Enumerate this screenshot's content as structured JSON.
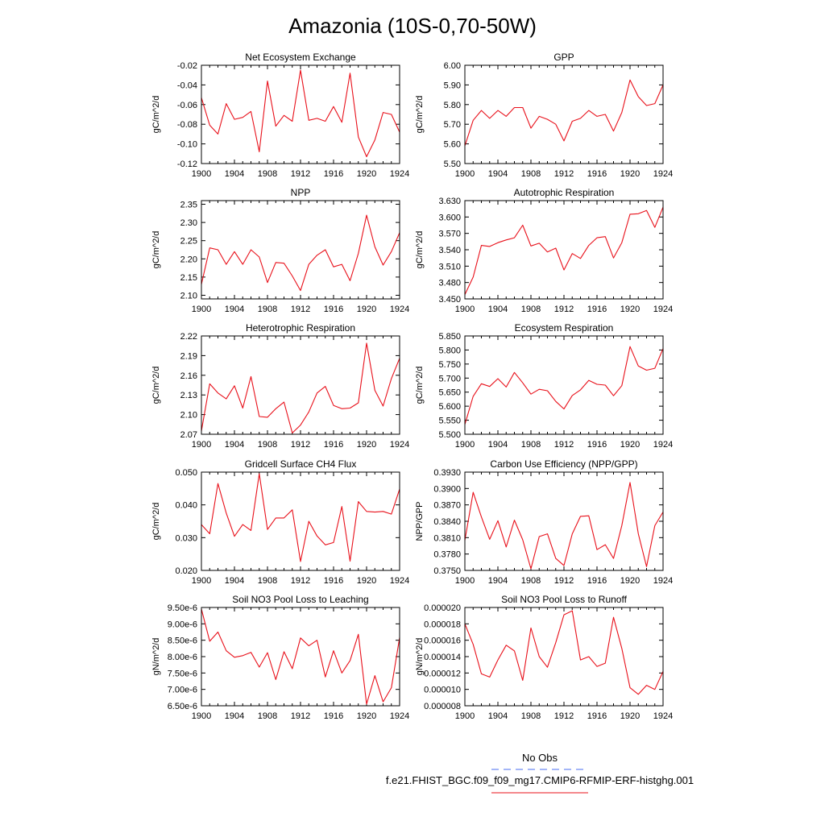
{
  "title": "Amazonia (10S-0,70-50W)",
  "legend": {
    "entries": [
      {
        "label": "No Obs",
        "color": "#4a6cf0",
        "style": "dashed"
      },
      {
        "label": "f.e21.FHIST_BGC.f09_f09_mg17.CMIP6-RFMIP-ERF-histghg.001",
        "color": "#e8101a",
        "style": "solid"
      }
    ]
  },
  "chart_data": [
    {
      "type": "line",
      "title": "Net Ecosystem Exchange",
      "ylabel": "gC/m^2/d",
      "xlabel": "",
      "xlim": [
        1900,
        1924
      ],
      "ylim": [
        -0.12,
        -0.02
      ],
      "xticks": [
        1900,
        1904,
        1908,
        1912,
        1916,
        1920,
        1924
      ],
      "yticks": [
        -0.12,
        -0.1,
        -0.08,
        -0.06,
        -0.04,
        -0.02
      ],
      "ytick_labels": [
        "-0.12",
        "-0.10",
        "-0.08",
        "-0.06",
        "-0.04",
        "-0.02"
      ],
      "x": [
        1900,
        1901,
        1902,
        1903,
        1904,
        1905,
        1906,
        1907,
        1908,
        1909,
        1910,
        1911,
        1912,
        1913,
        1914,
        1915,
        1916,
        1917,
        1918,
        1919,
        1920,
        1921,
        1922,
        1923,
        1924
      ],
      "series": [
        {
          "name": "f.e21.FHIST_BGC.f09_f09_mg17.CMIP6-RFMIP-ERF-histghg.001",
          "color": "#e8101a",
          "values": [
            -0.053,
            -0.081,
            -0.09,
            -0.059,
            -0.075,
            -0.073,
            -0.067,
            -0.108,
            -0.036,
            -0.082,
            -0.071,
            -0.077,
            -0.025,
            -0.076,
            -0.074,
            -0.077,
            -0.062,
            -0.078,
            -0.028,
            -0.093,
            -0.113,
            -0.096,
            -0.068,
            -0.07,
            -0.088
          ]
        }
      ]
    },
    {
      "type": "line",
      "title": "GPP",
      "ylabel": "gC/m^2/d",
      "xlabel": "",
      "xlim": [
        1900,
        1924
      ],
      "ylim": [
        5.5,
        6.0
      ],
      "xticks": [
        1900,
        1904,
        1908,
        1912,
        1916,
        1920,
        1924
      ],
      "yticks": [
        5.5,
        5.6,
        5.7,
        5.8,
        5.9,
        6.0
      ],
      "ytick_labels": [
        "5.50",
        "5.60",
        "5.70",
        "5.80",
        "5.90",
        "6.00"
      ],
      "x": [
        1900,
        1901,
        1902,
        1903,
        1904,
        1905,
        1906,
        1907,
        1908,
        1909,
        1910,
        1911,
        1912,
        1913,
        1914,
        1915,
        1916,
        1917,
        1918,
        1919,
        1920,
        1921,
        1922,
        1923,
        1924
      ],
      "series": [
        {
          "name": "f.e21.FHIST_BGC.f09_f09_mg17.CMIP6-RFMIP-ERF-histghg.001",
          "color": "#e8101a",
          "values": [
            5.59,
            5.72,
            5.77,
            5.73,
            5.77,
            5.74,
            5.785,
            5.785,
            5.68,
            5.74,
            5.725,
            5.7,
            5.615,
            5.715,
            5.73,
            5.77,
            5.74,
            5.75,
            5.665,
            5.76,
            5.925,
            5.84,
            5.795,
            5.805,
            5.9
          ]
        }
      ]
    },
    {
      "type": "line",
      "title": "NPP",
      "ylabel": "gC/m^2/d",
      "xlabel": "",
      "xlim": [
        1900,
        1924
      ],
      "ylim": [
        2.09,
        2.36
      ],
      "xticks": [
        1900,
        1904,
        1908,
        1912,
        1916,
        1920,
        1924
      ],
      "yticks": [
        2.1,
        2.15,
        2.2,
        2.25,
        2.3,
        2.35
      ],
      "ytick_labels": [
        "2.10",
        "2.15",
        "2.20",
        "2.25",
        "2.30",
        "2.35"
      ],
      "x": [
        1900,
        1901,
        1902,
        1903,
        1904,
        1905,
        1906,
        1907,
        1908,
        1909,
        1910,
        1911,
        1912,
        1913,
        1914,
        1915,
        1916,
        1917,
        1918,
        1919,
        1920,
        1921,
        1922,
        1923,
        1924
      ],
      "series": [
        {
          "name": "f.e21.FHIST_BGC.f09_f09_mg17.CMIP6-RFMIP-ERF-histghg.001",
          "color": "#e8101a",
          "values": [
            2.13,
            2.23,
            2.225,
            2.185,
            2.22,
            2.185,
            2.225,
            2.205,
            2.135,
            2.19,
            2.188,
            2.153,
            2.113,
            2.185,
            2.21,
            2.225,
            2.178,
            2.185,
            2.14,
            2.215,
            2.32,
            2.233,
            2.183,
            2.22,
            2.272
          ]
        }
      ]
    },
    {
      "type": "line",
      "title": "Autotrophic Respiration",
      "ylabel": "gC/m^2/d",
      "xlabel": "",
      "xlim": [
        1900,
        1924
      ],
      "ylim": [
        3.45,
        3.63
      ],
      "xticks": [
        1900,
        1904,
        1908,
        1912,
        1916,
        1920,
        1924
      ],
      "yticks": [
        3.45,
        3.48,
        3.51,
        3.54,
        3.57,
        3.6,
        3.63
      ],
      "ytick_labels": [
        "3.450",
        "3.480",
        "3.510",
        "3.540",
        "3.570",
        "3.600",
        "3.630"
      ],
      "x": [
        1900,
        1901,
        1902,
        1903,
        1904,
        1905,
        1906,
        1907,
        1908,
        1909,
        1910,
        1911,
        1912,
        1913,
        1914,
        1915,
        1916,
        1917,
        1918,
        1919,
        1920,
        1921,
        1922,
        1923,
        1924
      ],
      "series": [
        {
          "name": "f.e21.FHIST_BGC.f09_f09_mg17.CMIP6-RFMIP-ERF-histghg.001",
          "color": "#e8101a",
          "values": [
            3.458,
            3.49,
            3.548,
            3.546,
            3.553,
            3.558,
            3.562,
            3.585,
            3.547,
            3.552,
            3.536,
            3.543,
            3.503,
            3.533,
            3.524,
            3.548,
            3.562,
            3.564,
            3.525,
            3.553,
            3.605,
            3.606,
            3.612,
            3.581,
            3.618
          ]
        }
      ]
    },
    {
      "type": "line",
      "title": "Heterotrophic Respiration",
      "ylabel": "gC/m^2/d",
      "xlabel": "",
      "xlim": [
        1900,
        1924
      ],
      "ylim": [
        2.07,
        2.22
      ],
      "xticks": [
        1900,
        1904,
        1908,
        1912,
        1916,
        1920,
        1924
      ],
      "yticks": [
        2.07,
        2.1,
        2.13,
        2.16,
        2.19,
        2.22
      ],
      "ytick_labels": [
        "2.07",
        "2.10",
        "2.13",
        "2.16",
        "2.19",
        "2.22"
      ],
      "x": [
        1900,
        1901,
        1902,
        1903,
        1904,
        1905,
        1906,
        1907,
        1908,
        1909,
        1910,
        1911,
        1912,
        1913,
        1914,
        1915,
        1916,
        1917,
        1918,
        1919,
        1920,
        1921,
        1922,
        1923,
        1924
      ],
      "series": [
        {
          "name": "f.e21.FHIST_BGC.f09_f09_mg17.CMIP6-RFMIP-ERF-histghg.001",
          "color": "#e8101a",
          "values": [
            2.075,
            2.147,
            2.133,
            2.124,
            2.144,
            2.11,
            2.158,
            2.097,
            2.096,
            2.109,
            2.119,
            2.072,
            2.084,
            2.104,
            2.133,
            2.143,
            2.114,
            2.109,
            2.11,
            2.118,
            2.209,
            2.137,
            2.113,
            2.155,
            2.186
          ]
        }
      ]
    },
    {
      "type": "line",
      "title": "Ecosystem Respiration",
      "ylabel": "gC/m^2/d",
      "xlabel": "",
      "xlim": [
        1900,
        1924
      ],
      "ylim": [
        5.5,
        5.85
      ],
      "xticks": [
        1900,
        1904,
        1908,
        1912,
        1916,
        1920,
        1924
      ],
      "yticks": [
        5.5,
        5.55,
        5.6,
        5.65,
        5.7,
        5.75,
        5.8,
        5.85
      ],
      "ytick_labels": [
        "5.500",
        "5.550",
        "5.600",
        "5.650",
        "5.700",
        "5.750",
        "5.800",
        "5.850"
      ],
      "x": [
        1900,
        1901,
        1902,
        1903,
        1904,
        1905,
        1906,
        1907,
        1908,
        1909,
        1910,
        1911,
        1912,
        1913,
        1914,
        1915,
        1916,
        1917,
        1918,
        1919,
        1920,
        1921,
        1922,
        1923,
        1924
      ],
      "series": [
        {
          "name": "f.e21.FHIST_BGC.f09_f09_mg17.CMIP6-RFMIP-ERF-histghg.001",
          "color": "#e8101a",
          "values": [
            5.535,
            5.635,
            5.68,
            5.67,
            5.698,
            5.668,
            5.72,
            5.683,
            5.643,
            5.66,
            5.655,
            5.617,
            5.59,
            5.638,
            5.658,
            5.692,
            5.678,
            5.675,
            5.637,
            5.673,
            5.812,
            5.743,
            5.728,
            5.735,
            5.805
          ]
        }
      ]
    },
    {
      "type": "line",
      "title": "Gridcell Surface CH4 Flux",
      "ylabel": "gC/m^2/d",
      "xlabel": "",
      "xlim": [
        1900,
        1924
      ],
      "ylim": [
        0.02,
        0.05
      ],
      "xticks": [
        1900,
        1904,
        1908,
        1912,
        1916,
        1920,
        1924
      ],
      "yticks": [
        0.02,
        0.03,
        0.04,
        0.05
      ],
      "ytick_labels": [
        "0.020",
        "0.030",
        "0.040",
        "0.050"
      ],
      "x": [
        1900,
        1901,
        1902,
        1903,
        1904,
        1905,
        1906,
        1907,
        1908,
        1909,
        1910,
        1911,
        1912,
        1913,
        1914,
        1915,
        1916,
        1917,
        1918,
        1919,
        1920,
        1921,
        1922,
        1923,
        1924
      ],
      "series": [
        {
          "name": "f.e21.FHIST_BGC.f09_f09_mg17.CMIP6-RFMIP-ERF-histghg.001",
          "color": "#e8101a",
          "values": [
            0.034,
            0.0312,
            0.0465,
            0.0375,
            0.0304,
            0.034,
            0.0322,
            0.0495,
            0.0325,
            0.036,
            0.036,
            0.0385,
            0.0227,
            0.035,
            0.0305,
            0.0278,
            0.0285,
            0.0395,
            0.0228,
            0.041,
            0.038,
            0.0378,
            0.038,
            0.0372,
            0.0448
          ]
        }
      ]
    },
    {
      "type": "line",
      "title": "Carbon Use Efficiency (NPP/GPP)",
      "ylabel": "NPP/GPP",
      "xlabel": "",
      "xlim": [
        1900,
        1924
      ],
      "ylim": [
        0.375,
        0.393
      ],
      "xticks": [
        1900,
        1904,
        1908,
        1912,
        1916,
        1920,
        1924
      ],
      "yticks": [
        0.375,
        0.378,
        0.381,
        0.384,
        0.387,
        0.39,
        0.393
      ],
      "ytick_labels": [
        "0.3750",
        "0.3780",
        "0.3810",
        "0.3840",
        "0.3870",
        "0.3900",
        "0.3930"
      ],
      "x": [
        1900,
        1901,
        1902,
        1903,
        1904,
        1905,
        1906,
        1907,
        1908,
        1909,
        1910,
        1911,
        1912,
        1913,
        1914,
        1915,
        1916,
        1917,
        1918,
        1919,
        1920,
        1921,
        1922,
        1923,
        1924
      ],
      "series": [
        {
          "name": "f.e21.FHIST_BGC.f09_f09_mg17.CMIP6-RFMIP-ERF-histghg.001",
          "color": "#e8101a",
          "values": [
            0.3805,
            0.3893,
            0.3848,
            0.3807,
            0.3841,
            0.3793,
            0.3842,
            0.3806,
            0.3753,
            0.3812,
            0.3817,
            0.3772,
            0.3759,
            0.3817,
            0.3849,
            0.385,
            0.3788,
            0.3797,
            0.3772,
            0.3832,
            0.3911,
            0.3817,
            0.3757,
            0.3832,
            0.3857
          ]
        }
      ]
    },
    {
      "type": "line",
      "title": "Soil NO3 Pool Loss to Leaching",
      "ylabel": "gN/m^2/d",
      "xlabel": "",
      "xlim": [
        1900,
        1924
      ],
      "ylim": [
        6.5e-06,
        9.5e-06
      ],
      "xticks": [
        1900,
        1904,
        1908,
        1912,
        1916,
        1920,
        1924
      ],
      "yticks": [
        6.5e-06,
        7e-06,
        7.5e-06,
        8e-06,
        8.5e-06,
        9e-06,
        9.5e-06
      ],
      "ytick_labels": [
        "6.50e-6",
        "7.00e-6",
        "7.50e-6",
        "8.00e-6",
        "8.50e-6",
        "9.00e-6",
        "9.50e-6"
      ],
      "x": [
        1900,
        1901,
        1902,
        1903,
        1904,
        1905,
        1906,
        1907,
        1908,
        1909,
        1910,
        1911,
        1912,
        1913,
        1914,
        1915,
        1916,
        1917,
        1918,
        1919,
        1920,
        1921,
        1922,
        1923,
        1924
      ],
      "series": [
        {
          "name": "f.e21.FHIST_BGC.f09_f09_mg17.CMIP6-RFMIP-ERF-histghg.001",
          "color": "#e8101a",
          "values": [
            9.45e-06,
            8.47e-06,
            8.75e-06,
            8.18e-06,
            7.98e-06,
            8.03e-06,
            8.13e-06,
            7.68e-06,
            8.12e-06,
            7.3e-06,
            8.15e-06,
            7.63e-06,
            8.57e-06,
            8.33e-06,
            8.5e-06,
            7.38e-06,
            8.18e-06,
            7.5e-06,
            7.88e-06,
            8.68e-06,
            6.55e-06,
            7.42e-06,
            6.62e-06,
            7.05e-06,
            8.58e-06
          ]
        }
      ]
    },
    {
      "type": "line",
      "title": "Soil NO3 Pool Loss to Runoff",
      "ylabel": "gN/m^2/d",
      "xlabel": "",
      "xlim": [
        1900,
        1924
      ],
      "ylim": [
        8e-06,
        2e-05
      ],
      "xticks": [
        1900,
        1904,
        1908,
        1912,
        1916,
        1920,
        1924
      ],
      "yticks": [
        8e-06,
        1e-05,
        1.2e-05,
        1.4e-05,
        1.6e-05,
        1.8e-05,
        2e-05
      ],
      "ytick_labels": [
        "0.000008",
        "0.000010",
        "0.000012",
        "0.000014",
        "0.000016",
        "0.000018",
        "0.000020"
      ],
      "x": [
        1900,
        1901,
        1902,
        1903,
        1904,
        1905,
        1906,
        1907,
        1908,
        1909,
        1910,
        1911,
        1912,
        1913,
        1914,
        1915,
        1916,
        1917,
        1918,
        1919,
        1920,
        1921,
        1922,
        1923,
        1924
      ],
      "series": [
        {
          "name": "f.e21.FHIST_BGC.f09_f09_mg17.CMIP6-RFMIP-ERF-histghg.001",
          "color": "#e8101a",
          "values": [
            1.8e-05,
            1.55e-05,
            1.19e-05,
            1.15e-05,
            1.36e-05,
            1.54e-05,
            1.47e-05,
            1.11e-05,
            1.75e-05,
            1.4e-05,
            1.27e-05,
            1.57e-05,
            1.91e-05,
            1.96e-05,
            1.36e-05,
            1.4e-05,
            1.28e-05,
            1.32e-05,
            1.88e-05,
            1.5e-05,
            1.02e-05,
            9.4e-06,
            1.05e-05,
            1e-05,
            1.22e-05
          ]
        }
      ]
    }
  ]
}
